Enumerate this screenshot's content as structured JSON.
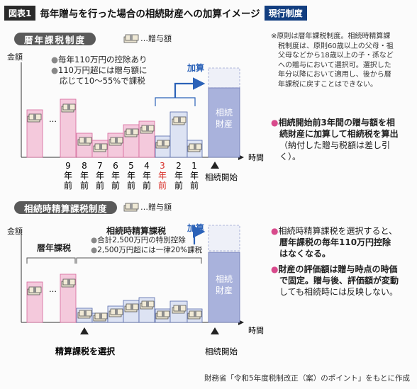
{
  "header": {
    "fig_label": "図表1",
    "title": "毎年贈与を行った場合の相続財産への加算イメージ",
    "status_badge": "現行制度"
  },
  "section1": {
    "pill": "暦年課税制度",
    "legend": "…贈与額",
    "y_label": "金額",
    "bullets": [
      "毎年110万円の控除あり",
      "110万円超には贈与額に",
      "応じて10～55%で課税"
    ],
    "add_label": "加算",
    "estate_label": [
      "相続",
      "財産"
    ],
    "time_label": "時間",
    "start_label": "相続開始",
    "ellipsis": "…",
    "years": [
      {
        "n": "9",
        "a": "年",
        "b": "前"
      },
      {
        "n": "8",
        "a": "年",
        "b": "前"
      },
      {
        "n": "7",
        "a": "年",
        "b": "前"
      },
      {
        "n": "6",
        "a": "年",
        "b": "前"
      },
      {
        "n": "5",
        "a": "年",
        "b": "前"
      },
      {
        "n": "4",
        "a": "年",
        "b": "前"
      },
      {
        "n": "3",
        "a": "年",
        "b": "前"
      },
      {
        "n": "2",
        "a": "年",
        "b": "前"
      },
      {
        "n": "1",
        "a": "年",
        "b": "前"
      }
    ],
    "note": [
      "※原則は暦年課税制度。相続時精算課",
      "税制度は、原則60歳以上の父母・祖",
      "父母などから18歳以上の子・孫など",
      "への贈与において選択可。選択した",
      "年分以降において適用し、後から暦",
      "年課税に戻すことはできない。"
    ],
    "side_bullet": [
      "相続開始前3年間の贈与額を相",
      "続財産に加算して相続税を算出",
      "（納付した贈与税額は差し引",
      "く）。"
    ]
  },
  "section2": {
    "pill": "相続時精算課税制度",
    "legend": "…贈与額",
    "y_label": "金額",
    "reki_label": "暦年課税",
    "seisan_label": "相続時精算課税",
    "bullets": [
      "合計2,500万円の特別控除",
      "2,500万円超には一律20%課税"
    ],
    "add_label": "加算",
    "estate_label": [
      "相続",
      "財産"
    ],
    "time_label": "時間",
    "start_label": "相続開始",
    "select_label": "精算課税を選択",
    "side_bullet1": [
      "相続時精算課税を選択すると、",
      "暦年課税の毎年110万円控除",
      "はなくなる。"
    ],
    "side_bullet2": [
      "財産の評価額は贈与時点の時価",
      "で固定。贈与後、評価額が変動",
      "しても相続時には反映しない。"
    ]
  },
  "footer": {
    "source": "財務省「令和5年度税制改正（案）のポイント」をもとに作成"
  },
  "colors": {
    "pink_bar": "#f4c9dc",
    "pink_line": "#d6679c",
    "blue_bar": "#dde3f3",
    "blue_line": "#5567aa",
    "estate_fill": "#a9b2dc",
    "arrow_blue": "#2b62b8",
    "red_year": "#d8302a"
  }
}
